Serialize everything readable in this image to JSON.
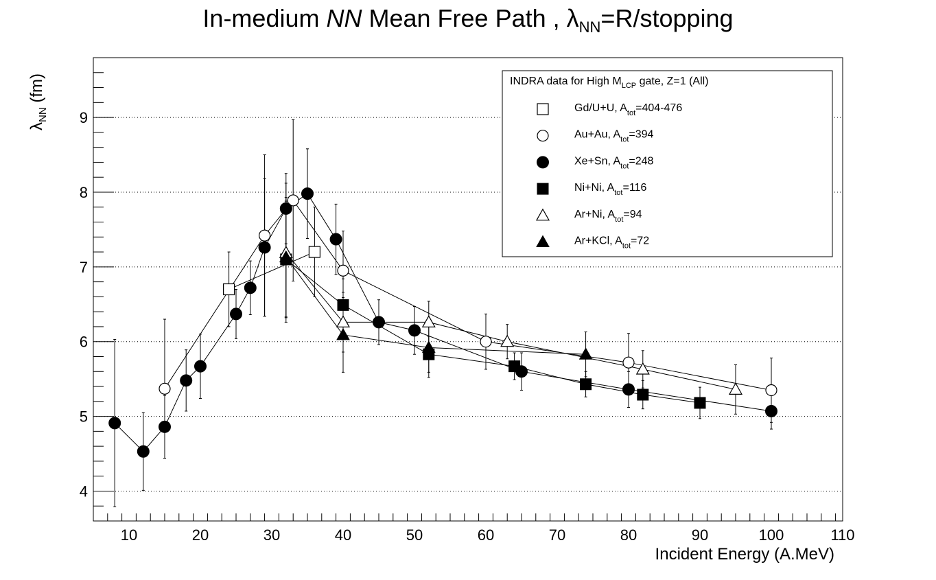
{
  "chart_data": {
    "type": "scatter",
    "title": {
      "prefix": "In-medium ",
      "italic": "NN",
      "middle": " Mean Free Path , ",
      "lambda": "λ",
      "sub": "NN",
      "suffix": "=R/stopping"
    },
    "xlabel": "Incident Energy (A.MeV)",
    "ylabel": {
      "lambda": "λ",
      "sub": "NN",
      "unit": " (fm)"
    },
    "xlim": [
      5,
      110
    ],
    "ylim": [
      3.6,
      9.8
    ],
    "xticks": [
      10,
      20,
      30,
      40,
      50,
      60,
      70,
      80,
      90,
      100,
      110
    ],
    "yticks": [
      4,
      5,
      6,
      7,
      8,
      9
    ],
    "grid": "horizontal-dotted",
    "legend": {
      "placement": "top-right",
      "header": {
        "text": "INDRA data for High M",
        "sub": "LCP",
        "suffix": " gate, Z=1 (All)"
      },
      "entries": [
        {
          "series": 0,
          "pre": "Gd/U+U, A",
          "sub": "tot",
          "post": "=404-476"
        },
        {
          "series": 1,
          "pre": "Au+Au, A",
          "sub": "tot",
          "post": "=394"
        },
        {
          "series": 2,
          "pre": "Xe+Sn, A",
          "sub": "tot",
          "post": "=248"
        },
        {
          "series": 3,
          "pre": "Ni+Ni, A",
          "sub": "tot",
          "post": "=116"
        },
        {
          "series": 4,
          "pre": "Ar+Ni, A",
          "sub": "tot",
          "post": "=94"
        },
        {
          "series": 5,
          "pre": "Ar+KCl, A",
          "sub": "tot",
          "post": "=72"
        }
      ]
    },
    "series": [
      {
        "name": "Gd/U+U",
        "marker": "open-square",
        "x": [
          24,
          36
        ],
        "y": [
          6.7,
          7.2
        ],
        "yerr": [
          0.5,
          0.6
        ]
      },
      {
        "name": "Au+Au",
        "marker": "open-circle",
        "x": [
          15,
          29,
          33,
          40,
          60,
          80,
          100
        ],
        "y": [
          5.37,
          7.42,
          7.89,
          6.95,
          6.0,
          5.72,
          5.35
        ],
        "yerr": [
          0.93,
          1.08,
          1.08,
          0.53,
          0.37,
          0.39,
          0.43
        ]
      },
      {
        "name": "Xe+Sn",
        "marker": "filled-circle",
        "x": [
          8,
          12,
          15,
          18,
          20,
          25,
          27,
          29,
          32,
          35,
          39,
          45,
          50,
          65,
          80,
          100
        ],
        "y": [
          4.91,
          4.53,
          4.86,
          5.48,
          5.67,
          6.37,
          6.72,
          7.26,
          7.78,
          7.98,
          7.37,
          6.26,
          6.15,
          5.6,
          5.36,
          5.07
        ],
        "yerr": [
          1.12,
          0.52,
          0.42,
          0.41,
          0.43,
          0.33,
          0.36,
          0.92,
          0.47,
          0.6,
          0.47,
          0.3,
          0.32,
          0.25,
          0.24,
          0.24
        ]
      },
      {
        "name": "Ni+Ni",
        "marker": "filled-square",
        "x": [
          32,
          40,
          52,
          64,
          74,
          82,
          90
        ],
        "y": [
          7.1,
          6.49,
          5.83,
          5.67,
          5.43,
          5.29,
          5.18
        ],
        "yerr": [
          0.78,
          0.35,
          0.24,
          0.18,
          0.17,
          0.19,
          0.21
        ]
      },
      {
        "name": "Ar+Ni",
        "marker": "open-triangle",
        "x": [
          32,
          40,
          52,
          63,
          82,
          95
        ],
        "y": [
          7.19,
          6.26,
          6.26,
          6.0,
          5.63,
          5.36
        ],
        "yerr": [
          0.93,
          0.4,
          0.28,
          0.23,
          0.25,
          0.33
        ]
      },
      {
        "name": "Ar+KCl",
        "marker": "filled-triangle",
        "x": [
          32,
          40,
          52,
          74
        ],
        "y": [
          7.13,
          6.09,
          5.92,
          5.83
        ],
        "yerr": [
          0.8,
          0.5,
          0.4,
          0.3
        ]
      }
    ]
  }
}
